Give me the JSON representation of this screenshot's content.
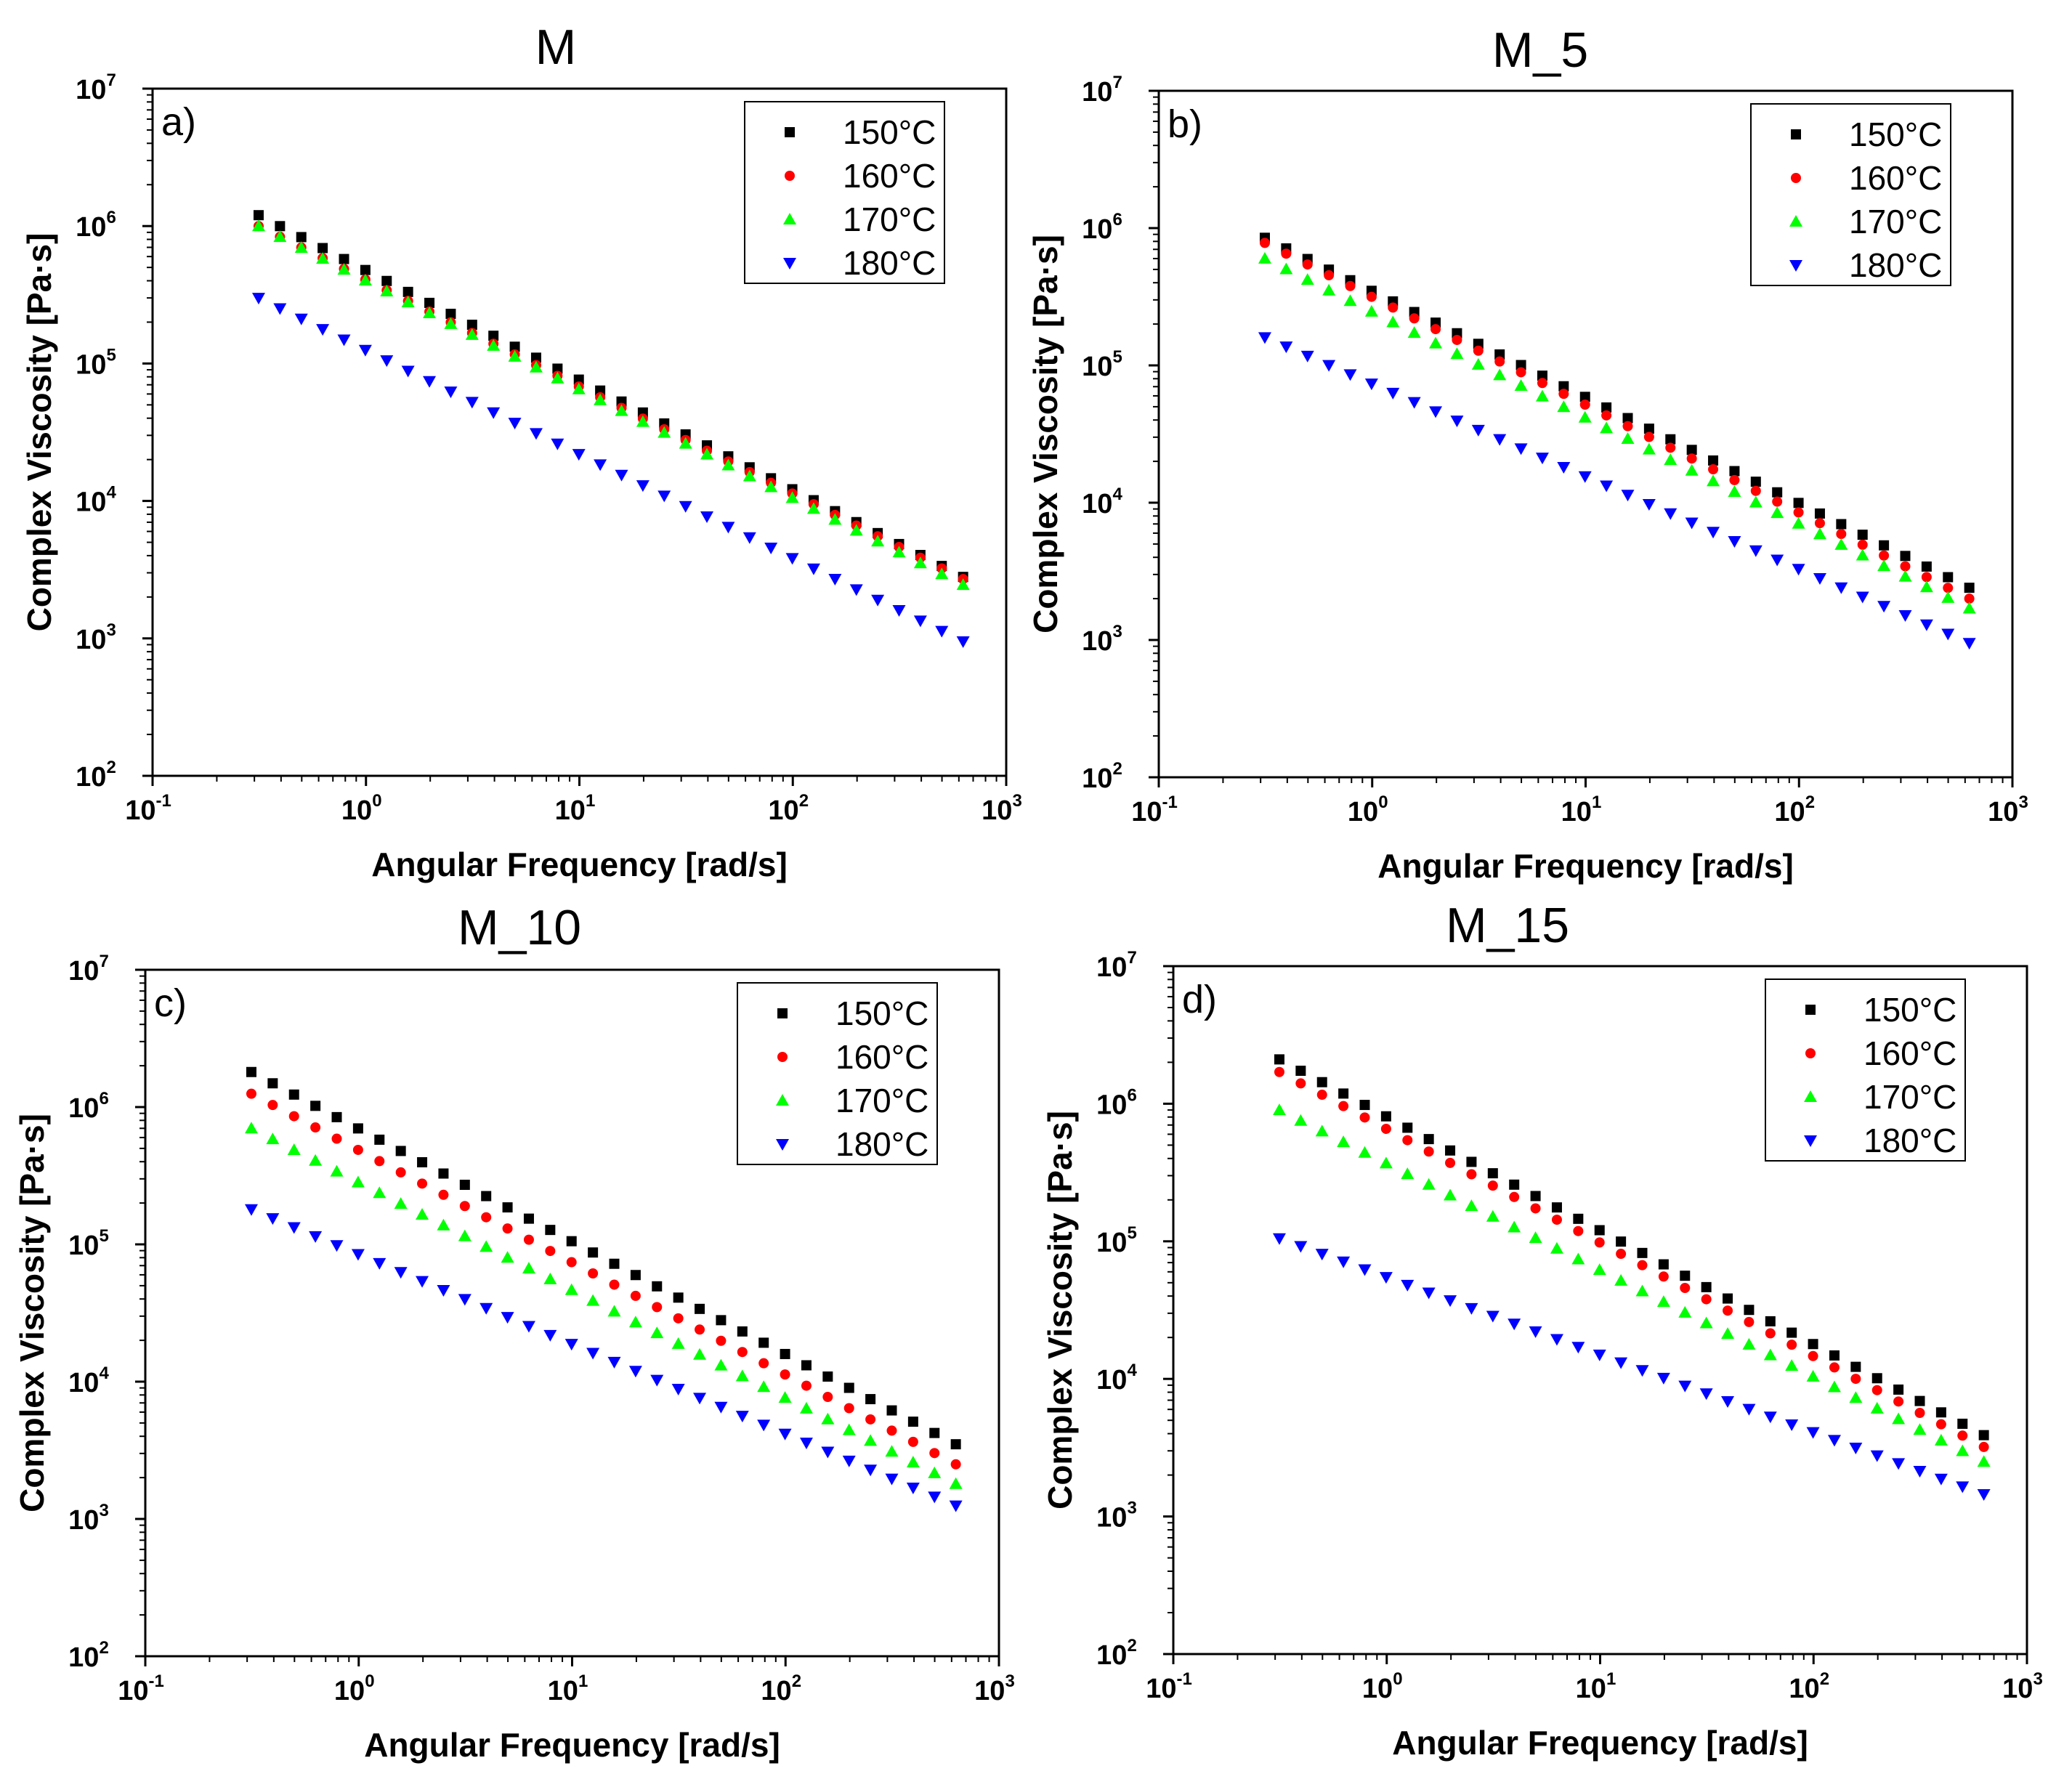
{
  "chart_data": [
    {
      "type": "scatter",
      "title": "M",
      "panel_label": "a)",
      "xlabel": "Angular Frequency [rad/s]",
      "ylabel": "Complex Viscosity [Pa·s]",
      "x_scale": "log",
      "y_scale": "log",
      "xlim": [
        0.1,
        1000
      ],
      "ylim": [
        100,
        10000000
      ],
      "x_ticks": [
        {
          "base": "10",
          "exp": "-1"
        },
        {
          "base": "10",
          "exp": "0"
        },
        {
          "base": "10",
          "exp": "1"
        },
        {
          "base": "10",
          "exp": "2"
        },
        {
          "base": "10",
          "exp": "3"
        }
      ],
      "y_ticks": [
        {
          "base": "10",
          "exp": "2"
        },
        {
          "base": "10",
          "exp": "3"
        },
        {
          "base": "10",
          "exp": "4"
        },
        {
          "base": "10",
          "exp": "5"
        },
        {
          "base": "10",
          "exp": "6"
        },
        {
          "base": "10",
          "exp": "7"
        }
      ],
      "legend_position": "top-right",
      "x_start": 0.314,
      "x_end": 628,
      "points_per_series": 34,
      "series": [
        {
          "name": "150°C",
          "marker": "square",
          "color": "#000000",
          "y_start": 1200000,
          "y_end": 2800
        },
        {
          "name": "160°C",
          "marker": "circle",
          "color": "#ff0000",
          "y_start": 1000000,
          "y_end": 2700
        },
        {
          "name": "170°C",
          "marker": "triangle-up",
          "color": "#00ff00",
          "y_start": 1000000,
          "y_end": 2450
        },
        {
          "name": "180°C",
          "marker": "triangle-down",
          "color": "#0000ff",
          "y_start": 300000,
          "y_end": 950
        }
      ]
    },
    {
      "type": "scatter",
      "title": "M_5",
      "panel_label": "b)",
      "xlabel": "Angular Frequency [rad/s]",
      "ylabel": "Complex Viscosity [Pa·s]",
      "x_scale": "log",
      "y_scale": "log",
      "xlim": [
        0.1,
        1000
      ],
      "ylim": [
        100,
        10000000
      ],
      "x_ticks": [
        {
          "base": "10",
          "exp": "-1"
        },
        {
          "base": "10",
          "exp": "0"
        },
        {
          "base": "10",
          "exp": "1"
        },
        {
          "base": "10",
          "exp": "2"
        },
        {
          "base": "10",
          "exp": "3"
        }
      ],
      "y_ticks": [
        {
          "base": "10",
          "exp": "2"
        },
        {
          "base": "10",
          "exp": "3"
        },
        {
          "base": "10",
          "exp": "4"
        },
        {
          "base": "10",
          "exp": "5"
        },
        {
          "base": "10",
          "exp": "6"
        },
        {
          "base": "10",
          "exp": "7"
        }
      ],
      "legend_position": "top-right",
      "x_start": 0.314,
      "x_end": 628,
      "points_per_series": 34,
      "series": [
        {
          "name": "150°C",
          "marker": "square",
          "color": "#000000",
          "y_start": 850000,
          "y_end": 2400
        },
        {
          "name": "160°C",
          "marker": "circle",
          "color": "#ff0000",
          "y_start": 780000,
          "y_end": 2000
        },
        {
          "name": "170°C",
          "marker": "triangle-up",
          "color": "#00ff00",
          "y_start": 600000,
          "y_end": 1700
        },
        {
          "name": "180°C",
          "marker": "triangle-down",
          "color": "#0000ff",
          "y_start": 160000,
          "y_end": 950
        }
      ]
    },
    {
      "type": "scatter",
      "title": "M_10",
      "panel_label": "c)",
      "xlabel": "Angular Frequency [rad/s]",
      "ylabel": "Complex Viscosity [Pa·s]",
      "x_scale": "log",
      "y_scale": "log",
      "xlim": [
        0.1,
        1000
      ],
      "ylim": [
        100,
        10000000
      ],
      "x_ticks": [
        {
          "base": "10",
          "exp": "-1"
        },
        {
          "base": "10",
          "exp": "0"
        },
        {
          "base": "10",
          "exp": "1"
        },
        {
          "base": "10",
          "exp": "2"
        },
        {
          "base": "10",
          "exp": "3"
        }
      ],
      "y_ticks": [
        {
          "base": "10",
          "exp": "2"
        },
        {
          "base": "10",
          "exp": "3"
        },
        {
          "base": "10",
          "exp": "4"
        },
        {
          "base": "10",
          "exp": "5"
        },
        {
          "base": "10",
          "exp": "6"
        },
        {
          "base": "10",
          "exp": "7"
        }
      ],
      "legend_position": "top-right",
      "x_start": 0.314,
      "x_end": 628,
      "points_per_series": 34,
      "series": [
        {
          "name": "150°C",
          "marker": "square",
          "color": "#000000",
          "y_start": 1800000,
          "y_end": 3500
        },
        {
          "name": "160°C",
          "marker": "circle",
          "color": "#ff0000",
          "y_start": 1250000,
          "y_end": 2500
        },
        {
          "name": "170°C",
          "marker": "triangle-up",
          "color": "#00ff00",
          "y_start": 700000,
          "y_end": 1800
        },
        {
          "name": "180°C",
          "marker": "triangle-down",
          "color": "#0000ff",
          "y_start": 180000,
          "y_end": 1250
        }
      ]
    },
    {
      "type": "scatter",
      "title": "M_15",
      "panel_label": "d)",
      "xlabel": "Angular Frequency [rad/s]",
      "ylabel": "Complex Viscosity [Pa·s]",
      "x_scale": "log",
      "y_scale": "log",
      "xlim": [
        0.1,
        1000
      ],
      "ylim": [
        100,
        10000000
      ],
      "x_ticks": [
        {
          "base": "10",
          "exp": "-1"
        },
        {
          "base": "10",
          "exp": "0"
        },
        {
          "base": "10",
          "exp": "1"
        },
        {
          "base": "10",
          "exp": "2"
        },
        {
          "base": "10",
          "exp": "3"
        }
      ],
      "y_ticks": [
        {
          "base": "10",
          "exp": "2"
        },
        {
          "base": "10",
          "exp": "3"
        },
        {
          "base": "10",
          "exp": "4"
        },
        {
          "base": "10",
          "exp": "5"
        },
        {
          "base": "10",
          "exp": "6"
        },
        {
          "base": "10",
          "exp": "7"
        }
      ],
      "legend_position": "top-right",
      "x_start": 0.314,
      "x_end": 628,
      "points_per_series": 34,
      "series": [
        {
          "name": "150°C",
          "marker": "square",
          "color": "#000000",
          "y_start": 2100000,
          "y_end": 3900
        },
        {
          "name": "160°C",
          "marker": "circle",
          "color": "#ff0000",
          "y_start": 1700000,
          "y_end": 3200
        },
        {
          "name": "170°C",
          "marker": "triangle-up",
          "color": "#00ff00",
          "y_start": 900000,
          "y_end": 2500
        },
        {
          "name": "180°C",
          "marker": "triangle-down",
          "color": "#0000ff",
          "y_start": 105000,
          "y_end": 1450
        }
      ]
    }
  ]
}
